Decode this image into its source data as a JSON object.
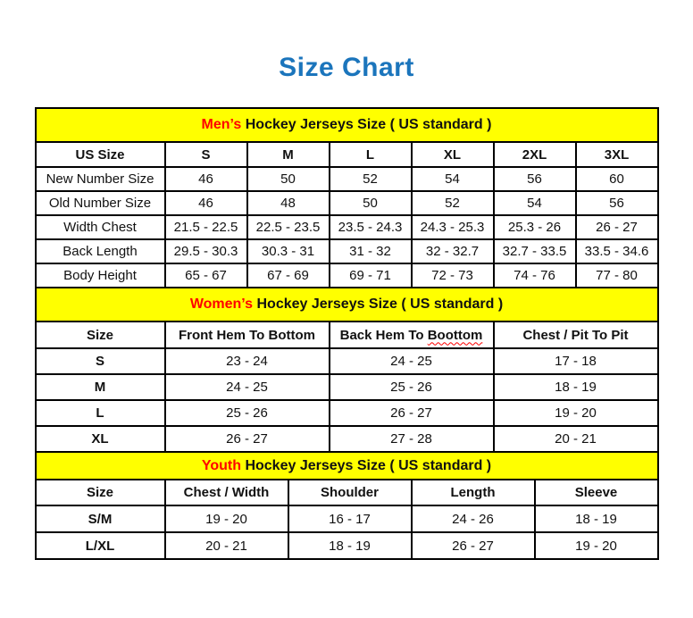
{
  "page_title": "Size Chart",
  "colors": {
    "title_blue": "#1b75bc",
    "accent_red": "#ff0000",
    "band_yellow": "#ffff00",
    "border_black": "#000000",
    "text_black": "#111111"
  },
  "mens": {
    "band_accent": "Men’s",
    "band_rest": "Hockey Jerseys Size ( US standard )",
    "headers": [
      "US Size",
      "S",
      "M",
      "L",
      "XL",
      "2XL",
      "3XL"
    ],
    "rows": [
      {
        "label": "New Number Size",
        "values": [
          "46",
          "50",
          "52",
          "54",
          "56",
          "60"
        ]
      },
      {
        "label": "Old Number Size",
        "values": [
          "46",
          "48",
          "50",
          "52",
          "54",
          "56"
        ]
      },
      {
        "label": "Width Chest",
        "values": [
          "21.5 - 22.5",
          "22.5 - 23.5",
          "23.5 - 24.3",
          "24.3 - 25.3",
          "25.3 - 26",
          "26 - 27"
        ]
      },
      {
        "label": "Back Length",
        "values": [
          "29.5 - 30.3",
          "30.3 - 31",
          "31 - 32",
          "32 - 32.7",
          "32.7 - 33.5",
          "33.5 - 34.6"
        ]
      },
      {
        "label": "Body Height",
        "values": [
          "65 - 67",
          "67 - 69",
          "69 - 71",
          "72 - 73",
          "74 - 76",
          "77 - 80"
        ]
      }
    ]
  },
  "womens": {
    "band_accent": "Women’s",
    "band_rest": "Hockey Jerseys Size ( US standard )",
    "headers": {
      "size": "Size",
      "front_hem": "Front Hem To Bottom",
      "back_hem_prefix": "Back Hem To",
      "back_hem_misspelled_word": "Boottom",
      "chest": "Chest / Pit To Pit"
    },
    "rows": [
      {
        "label": "S",
        "values": [
          "23 - 24",
          "24 - 25",
          "17 - 18"
        ]
      },
      {
        "label": "M",
        "values": [
          "24 - 25",
          "25 - 26",
          "18 - 19"
        ]
      },
      {
        "label": "L",
        "values": [
          "25 - 26",
          "26 - 27",
          "19 - 20"
        ]
      },
      {
        "label": "XL",
        "values": [
          "26 - 27",
          "27 - 28",
          "20 - 21"
        ]
      }
    ]
  },
  "youth": {
    "band_accent": "Youth",
    "band_rest": "Hockey Jerseys Size ( US standard )",
    "headers": [
      "Size",
      "Chest / Width",
      "Shoulder",
      "Length",
      "Sleeve"
    ],
    "rows": [
      {
        "label": "S/M",
        "values": [
          "19 - 20",
          "16 - 17",
          "24 - 26",
          "18 - 19"
        ]
      },
      {
        "label": "L/XL",
        "values": [
          "20 - 21",
          "18 - 19",
          "26 - 27",
          "19 - 20"
        ]
      }
    ]
  }
}
